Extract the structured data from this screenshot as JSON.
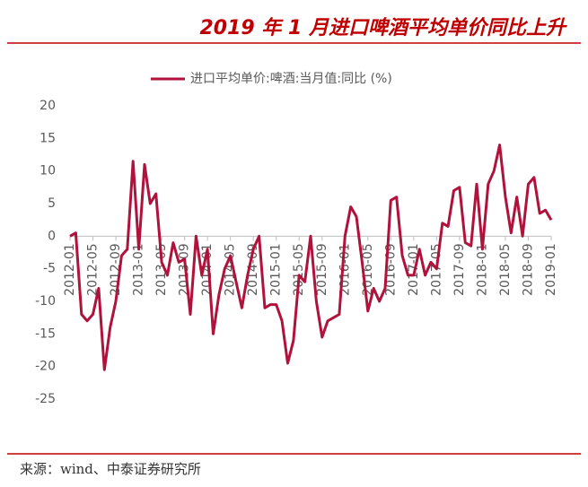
{
  "chart_data": {
    "type": "line",
    "title": "2019 年 1 月进口啤酒平均单价同比上升",
    "source": "来源：wind、中泰证券研究所",
    "categories": [
      "2012-01",
      null,
      null,
      null,
      "2012-05",
      null,
      null,
      null,
      "2012-09",
      null,
      null,
      null,
      "2013-01",
      null,
      null,
      null,
      "2013-05",
      null,
      null,
      null,
      "2013-09",
      null,
      null,
      null,
      "2014-01",
      null,
      null,
      null,
      "2014-05",
      null,
      null,
      null,
      "2014-09",
      null,
      null,
      null,
      "2015-01",
      null,
      null,
      null,
      "2015-05",
      null,
      null,
      null,
      "2015-09",
      null,
      null,
      null,
      "2016-01",
      null,
      null,
      null,
      "2016-05",
      null,
      null,
      null,
      "2016-09",
      null,
      null,
      null,
      "2017-01",
      null,
      null,
      null,
      "2017-05",
      null,
      null,
      null,
      "2017-09",
      null,
      null,
      null,
      "2018-01",
      null,
      null,
      null,
      "2018-05",
      null,
      null,
      null,
      "2018-09",
      null,
      null,
      null,
      "2019-01"
    ],
    "series": [
      {
        "name": "进口平均单价:啤酒:当月值:同比 (%)",
        "color": "#b0123c",
        "values": [
          0,
          0.5,
          -12,
          -13,
          -12,
          -8,
          -20.5,
          -14,
          -10,
          -3,
          -2,
          11.5,
          -2,
          11,
          5,
          6.5,
          -4,
          -6,
          -1,
          -4,
          -3.5,
          -12,
          0,
          -6,
          -2,
          -15,
          -9,
          -5,
          -3,
          -7,
          -11,
          -6,
          -2,
          0,
          -11,
          -10.5,
          -10.5,
          -13,
          -19.5,
          -16,
          -6,
          -7,
          0,
          -10,
          -15.5,
          -13,
          -12.5,
          -12,
          0,
          4.5,
          3,
          -4,
          -11.5,
          -8,
          -10,
          -8,
          5.5,
          6,
          -3,
          -6,
          -6,
          -2,
          -6,
          -4,
          -5,
          2,
          1.5,
          7,
          7.5,
          -1,
          -1.5,
          8,
          -2,
          8,
          10,
          14,
          6,
          0.5,
          6,
          0,
          8,
          9,
          3.5,
          4,
          2.5
        ]
      }
    ],
    "ylim": [
      -25,
      20
    ],
    "yticks": [
      20,
      15,
      10,
      5,
      0,
      -5,
      -10,
      -15,
      -20,
      -25
    ],
    "legend": "top"
  }
}
